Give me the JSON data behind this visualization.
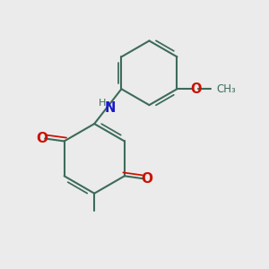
{
  "background_color": "#ebebeb",
  "bond_color": "#3d6b5a",
  "bond_width": 1.5,
  "oxygen_color": "#cc1100",
  "nitrogen_color": "#1a1acc",
  "figsize": [
    3.0,
    3.0
  ],
  "dpi": 100,
  "xlim": [
    0,
    10
  ],
  "ylim": [
    0,
    10
  ]
}
